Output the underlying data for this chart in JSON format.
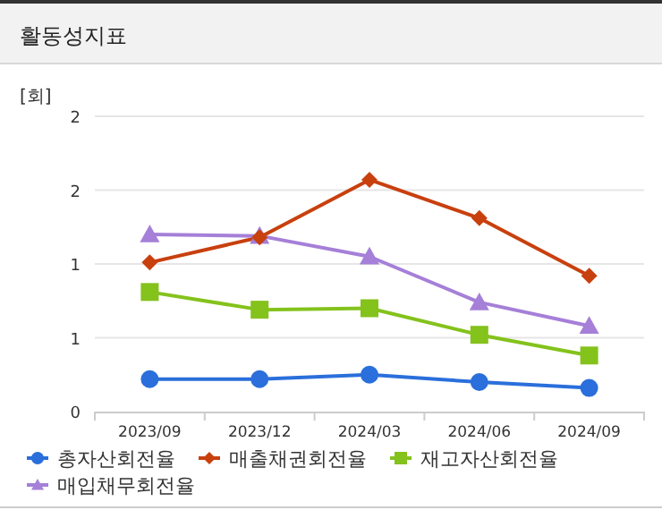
{
  "chart_data": {
    "type": "line",
    "title": "활동성지표",
    "ylabel": "[회]",
    "categories": [
      "2023/09",
      "2023/12",
      "2024/03",
      "2024/06",
      "2024/09"
    ],
    "series": [
      {
        "name": "총자산회전율",
        "color": "#2a6fdb",
        "marker": "circle",
        "values": [
          0.22,
          0.22,
          0.25,
          0.2,
          0.16
        ]
      },
      {
        "name": "매출채권회전율",
        "color": "#c8400e",
        "marker": "diamond",
        "values": [
          1.01,
          1.18,
          1.57,
          1.31,
          0.92
        ]
      },
      {
        "name": "재고자산회전율",
        "color": "#84c21c",
        "marker": "square",
        "values": [
          0.81,
          0.69,
          0.7,
          0.52,
          0.38
        ]
      },
      {
        "name": "매입채무회전율",
        "color": "#a57fd8",
        "marker": "triangle",
        "values": [
          1.2,
          1.19,
          1.05,
          0.74,
          0.58
        ]
      }
    ],
    "ylim": [
      0,
      2
    ],
    "yticks": [
      0,
      {
        "value": 0.5,
        "label": "1"
      },
      1,
      {
        "value": 1.5,
        "label": "2"
      },
      2
    ],
    "grid": "y",
    "legend": "bottom",
    "line_style": "solid"
  }
}
